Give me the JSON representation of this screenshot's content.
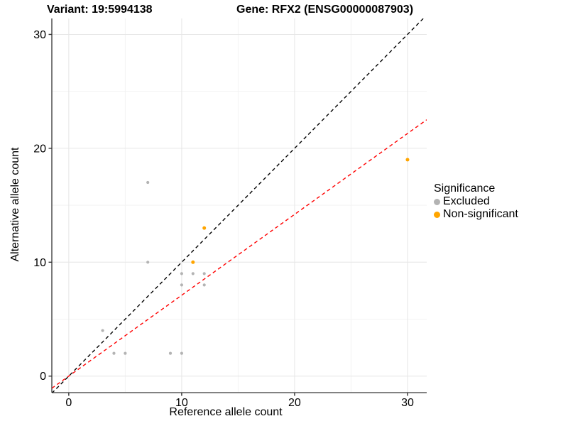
{
  "titles": {
    "variant": "Variant: 19:5994138",
    "gene": "Gene: RFX2 (ENSG00000087903)"
  },
  "chart_data": {
    "type": "scatter",
    "xlabel": "Reference allele count",
    "ylabel": "Alternative allele count",
    "xlim": [
      -1.5,
      31.7
    ],
    "ylim": [
      -1.45,
      31.4
    ],
    "x_ticks": [
      0,
      10,
      20,
      30
    ],
    "y_ticks": [
      0,
      10,
      20,
      30
    ],
    "x_minor": [
      5,
      15,
      25
    ],
    "y_minor": [
      5,
      15,
      25
    ],
    "grid": "major and minor on, white background",
    "legend_position": "right",
    "series": [
      {
        "name": "Excluded",
        "color": "#B3B3B3",
        "points": [
          [
            3,
            4
          ],
          [
            4,
            2
          ],
          [
            5,
            2
          ],
          [
            9,
            2
          ],
          [
            10,
            2
          ],
          [
            7,
            10
          ],
          [
            7,
            17
          ],
          [
            10,
            8
          ],
          [
            10,
            9
          ],
          [
            11,
            9
          ],
          [
            12,
            8
          ],
          [
            12,
            9
          ]
        ]
      },
      {
        "name": "Non-significant",
        "color": "#FFA500",
        "points": [
          [
            11,
            10
          ],
          [
            12,
            13
          ],
          [
            30,
            19
          ]
        ]
      }
    ],
    "lines": [
      {
        "name": "identity-line",
        "slope": 1,
        "intercept": 0,
        "color": "#000000",
        "style": "dashed"
      },
      {
        "name": "ratio-line",
        "slope": 0.71,
        "intercept": 0,
        "color": "#FF0000",
        "style": "dashed"
      }
    ],
    "legend": {
      "title": "Significance",
      "items": [
        {
          "label": "Excluded",
          "color": "#B3B3B3"
        },
        {
          "label": "Non-significant",
          "color": "#FFA500"
        }
      ]
    },
    "colors": {
      "grid_major": "#E6E6E6",
      "grid_minor": "#F3F3F3",
      "axis_line": "#595959",
      "tick": "#333333",
      "text": "#000000"
    }
  }
}
